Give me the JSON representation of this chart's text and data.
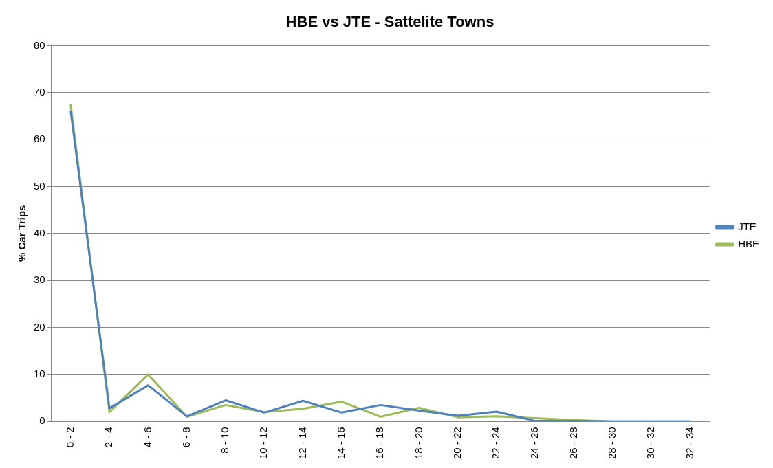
{
  "chart_data": {
    "type": "line",
    "title": "HBE vs JTE - Sattelite Towns",
    "ylabel": "% Car Trips",
    "categories": [
      "0 - 2",
      "2 - 4",
      "4 - 6",
      "6 - 8",
      "8 - 10",
      "10 - 12",
      "12 - 14",
      "14 - 16",
      "16 - 18",
      "18 - 20",
      "20 - 22",
      "22 - 24",
      "24 - 26",
      "26 - 28",
      "28 - 30",
      "30 - 32",
      "32 - 34"
    ],
    "series": [
      {
        "name": "JTE",
        "color": "#4f81bd",
        "values": [
          66,
          2.8,
          7.7,
          1.1,
          4.5,
          1.9,
          4.4,
          1.9,
          3.5,
          2.3,
          1.2,
          2.1,
          0.1,
          0.1,
          0,
          0,
          0
        ]
      },
      {
        "name": "HBE",
        "color": "#9bbb59",
        "values": [
          67.3,
          2.0,
          10.0,
          1.0,
          3.5,
          2.0,
          2.7,
          4.2,
          1.0,
          2.9,
          0.9,
          1.1,
          0.7,
          0.3,
          0,
          0,
          0
        ]
      }
    ],
    "ylim": [
      0,
      80
    ],
    "yticks": [
      0,
      10,
      20,
      30,
      40,
      50,
      60,
      70,
      80
    ],
    "grid": "y",
    "legend": "right",
    "marker": "none",
    "line_style": "solid"
  }
}
